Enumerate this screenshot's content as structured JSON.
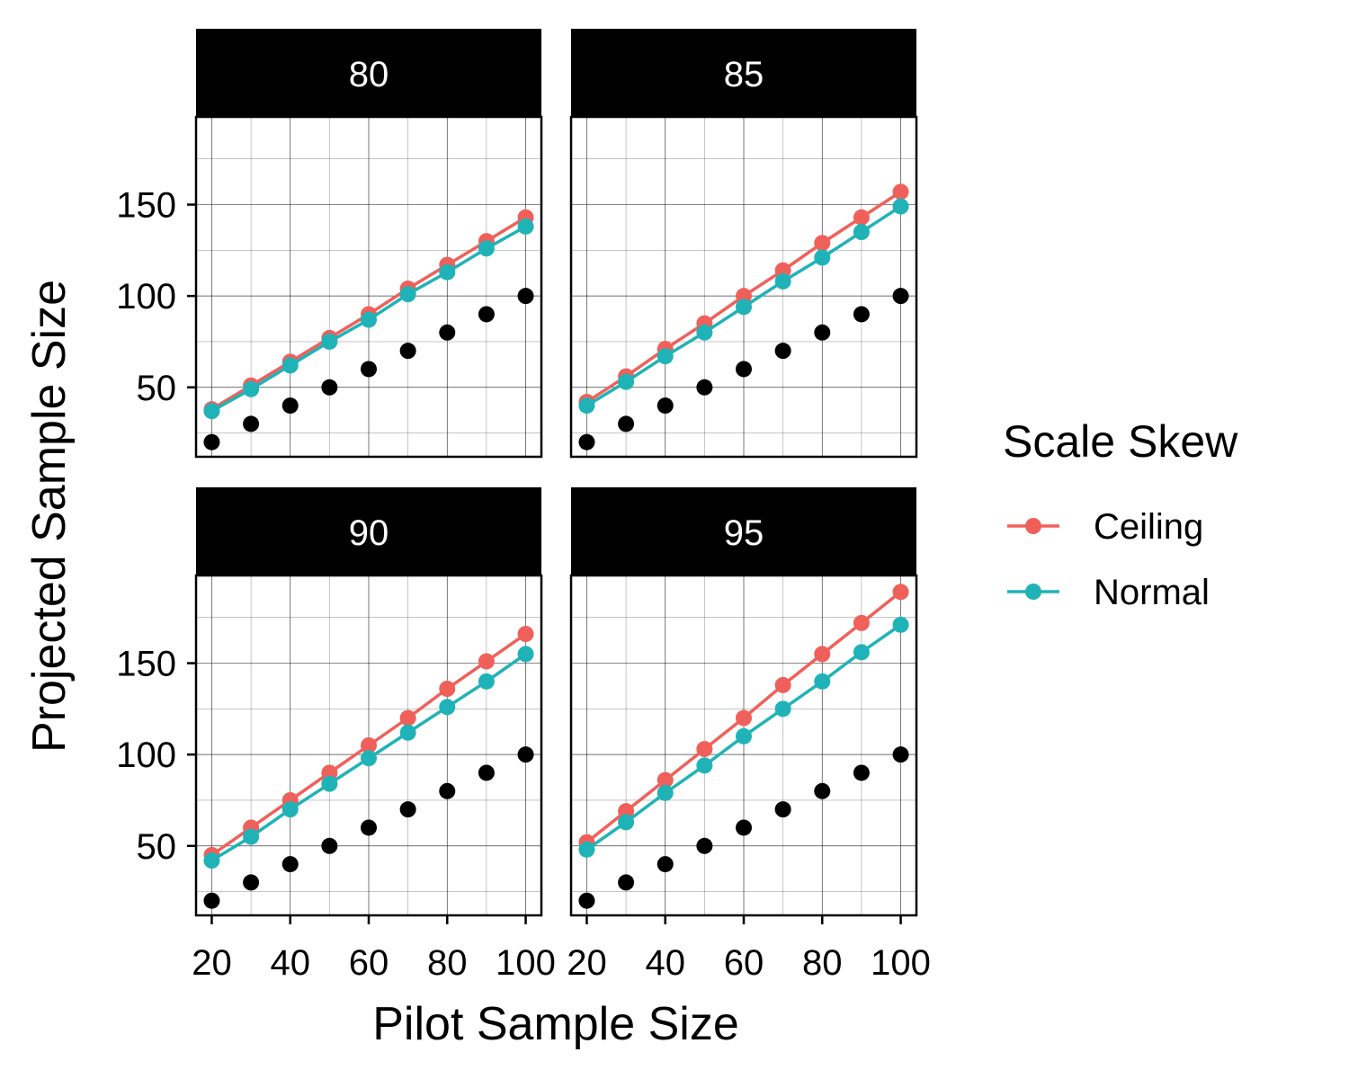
{
  "chart_data": {
    "type": "line",
    "xlabel": "Pilot Sample Size",
    "ylabel": "Projected Sample Size",
    "xlim": [
      16,
      104
    ],
    "ylim": [
      12,
      198
    ],
    "x_ticks": [
      20,
      40,
      60,
      80,
      100
    ],
    "y_ticks": [
      50,
      100,
      150
    ],
    "y_minor": [
      25,
      75,
      125,
      175
    ],
    "x_minor": [
      30,
      50,
      70,
      90
    ],
    "grid": true,
    "legend": {
      "title": "Scale Skew",
      "position": "right",
      "entries": [
        {
          "name": "Ceiling",
          "color": "#F0605A"
        },
        {
          "name": "Normal",
          "color": "#1FB3B7"
        }
      ]
    },
    "x": [
      20,
      30,
      40,
      50,
      60,
      70,
      80,
      90,
      100
    ],
    "reference_points": [
      20,
      30,
      40,
      50,
      60,
      70,
      80,
      90,
      100
    ],
    "reference_color": "#000000",
    "panels": [
      {
        "label": "80",
        "series": [
          {
            "name": "Ceiling",
            "values": [
              38,
              51,
              64,
              77,
              90,
              104,
              117,
              130,
              143
            ]
          },
          {
            "name": "Normal",
            "values": [
              37,
              49,
              62,
              75,
              87,
              101,
              113,
              126,
              138
            ]
          }
        ]
      },
      {
        "label": "85",
        "series": [
          {
            "name": "Ceiling",
            "values": [
              42,
              56,
              71,
              85,
              100,
              114,
              129,
              143,
              157
            ]
          },
          {
            "name": "Normal",
            "values": [
              40,
              53,
              67,
              80,
              94,
              108,
              121,
              135,
              149
            ]
          }
        ]
      },
      {
        "label": "90",
        "series": [
          {
            "name": "Ceiling",
            "values": [
              45,
              60,
              75,
              90,
              105,
              120,
              136,
              151,
              166
            ]
          },
          {
            "name": "Normal",
            "values": [
              42,
              55,
              70,
              84,
              98,
              112,
              126,
              140,
              155
            ]
          }
        ]
      },
      {
        "label": "95",
        "series": [
          {
            "name": "Ceiling",
            "values": [
              52,
              69,
              86,
              103,
              120,
              138,
              155,
              172,
              189
            ]
          },
          {
            "name": "Normal",
            "values": [
              48,
              63,
              79,
              94,
              110,
              125,
              140,
              156,
              171
            ]
          }
        ]
      }
    ]
  }
}
